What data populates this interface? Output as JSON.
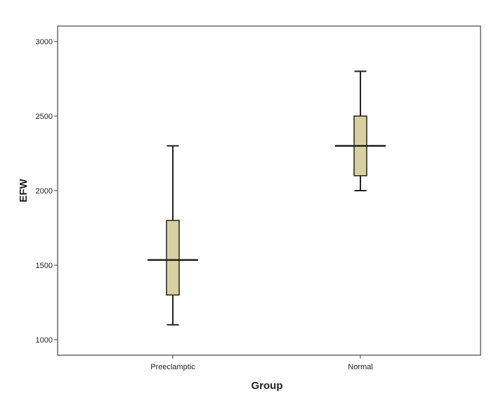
{
  "chart_data": {
    "type": "box",
    "xlabel": "Group",
    "ylabel": "EFW",
    "ylim": [
      900,
      3100
    ],
    "yticks": [
      1000,
      1500,
      2000,
      2500,
      3000
    ],
    "grid": false,
    "categories": [
      "Preeclamptic",
      "Normal"
    ],
    "boxes": [
      {
        "category": "Preeclamptic",
        "min": 1100,
        "q1": 1300,
        "median": 1535,
        "q3": 1800,
        "max": 2300
      },
      {
        "category": "Normal",
        "min": 2000,
        "q1": 2100,
        "median": 2300,
        "q3": 2500,
        "max": 2800
      }
    ],
    "colors": {
      "box_fill": "#d8d0a0",
      "stroke": "#222222",
      "background": "#ffffff"
    }
  }
}
